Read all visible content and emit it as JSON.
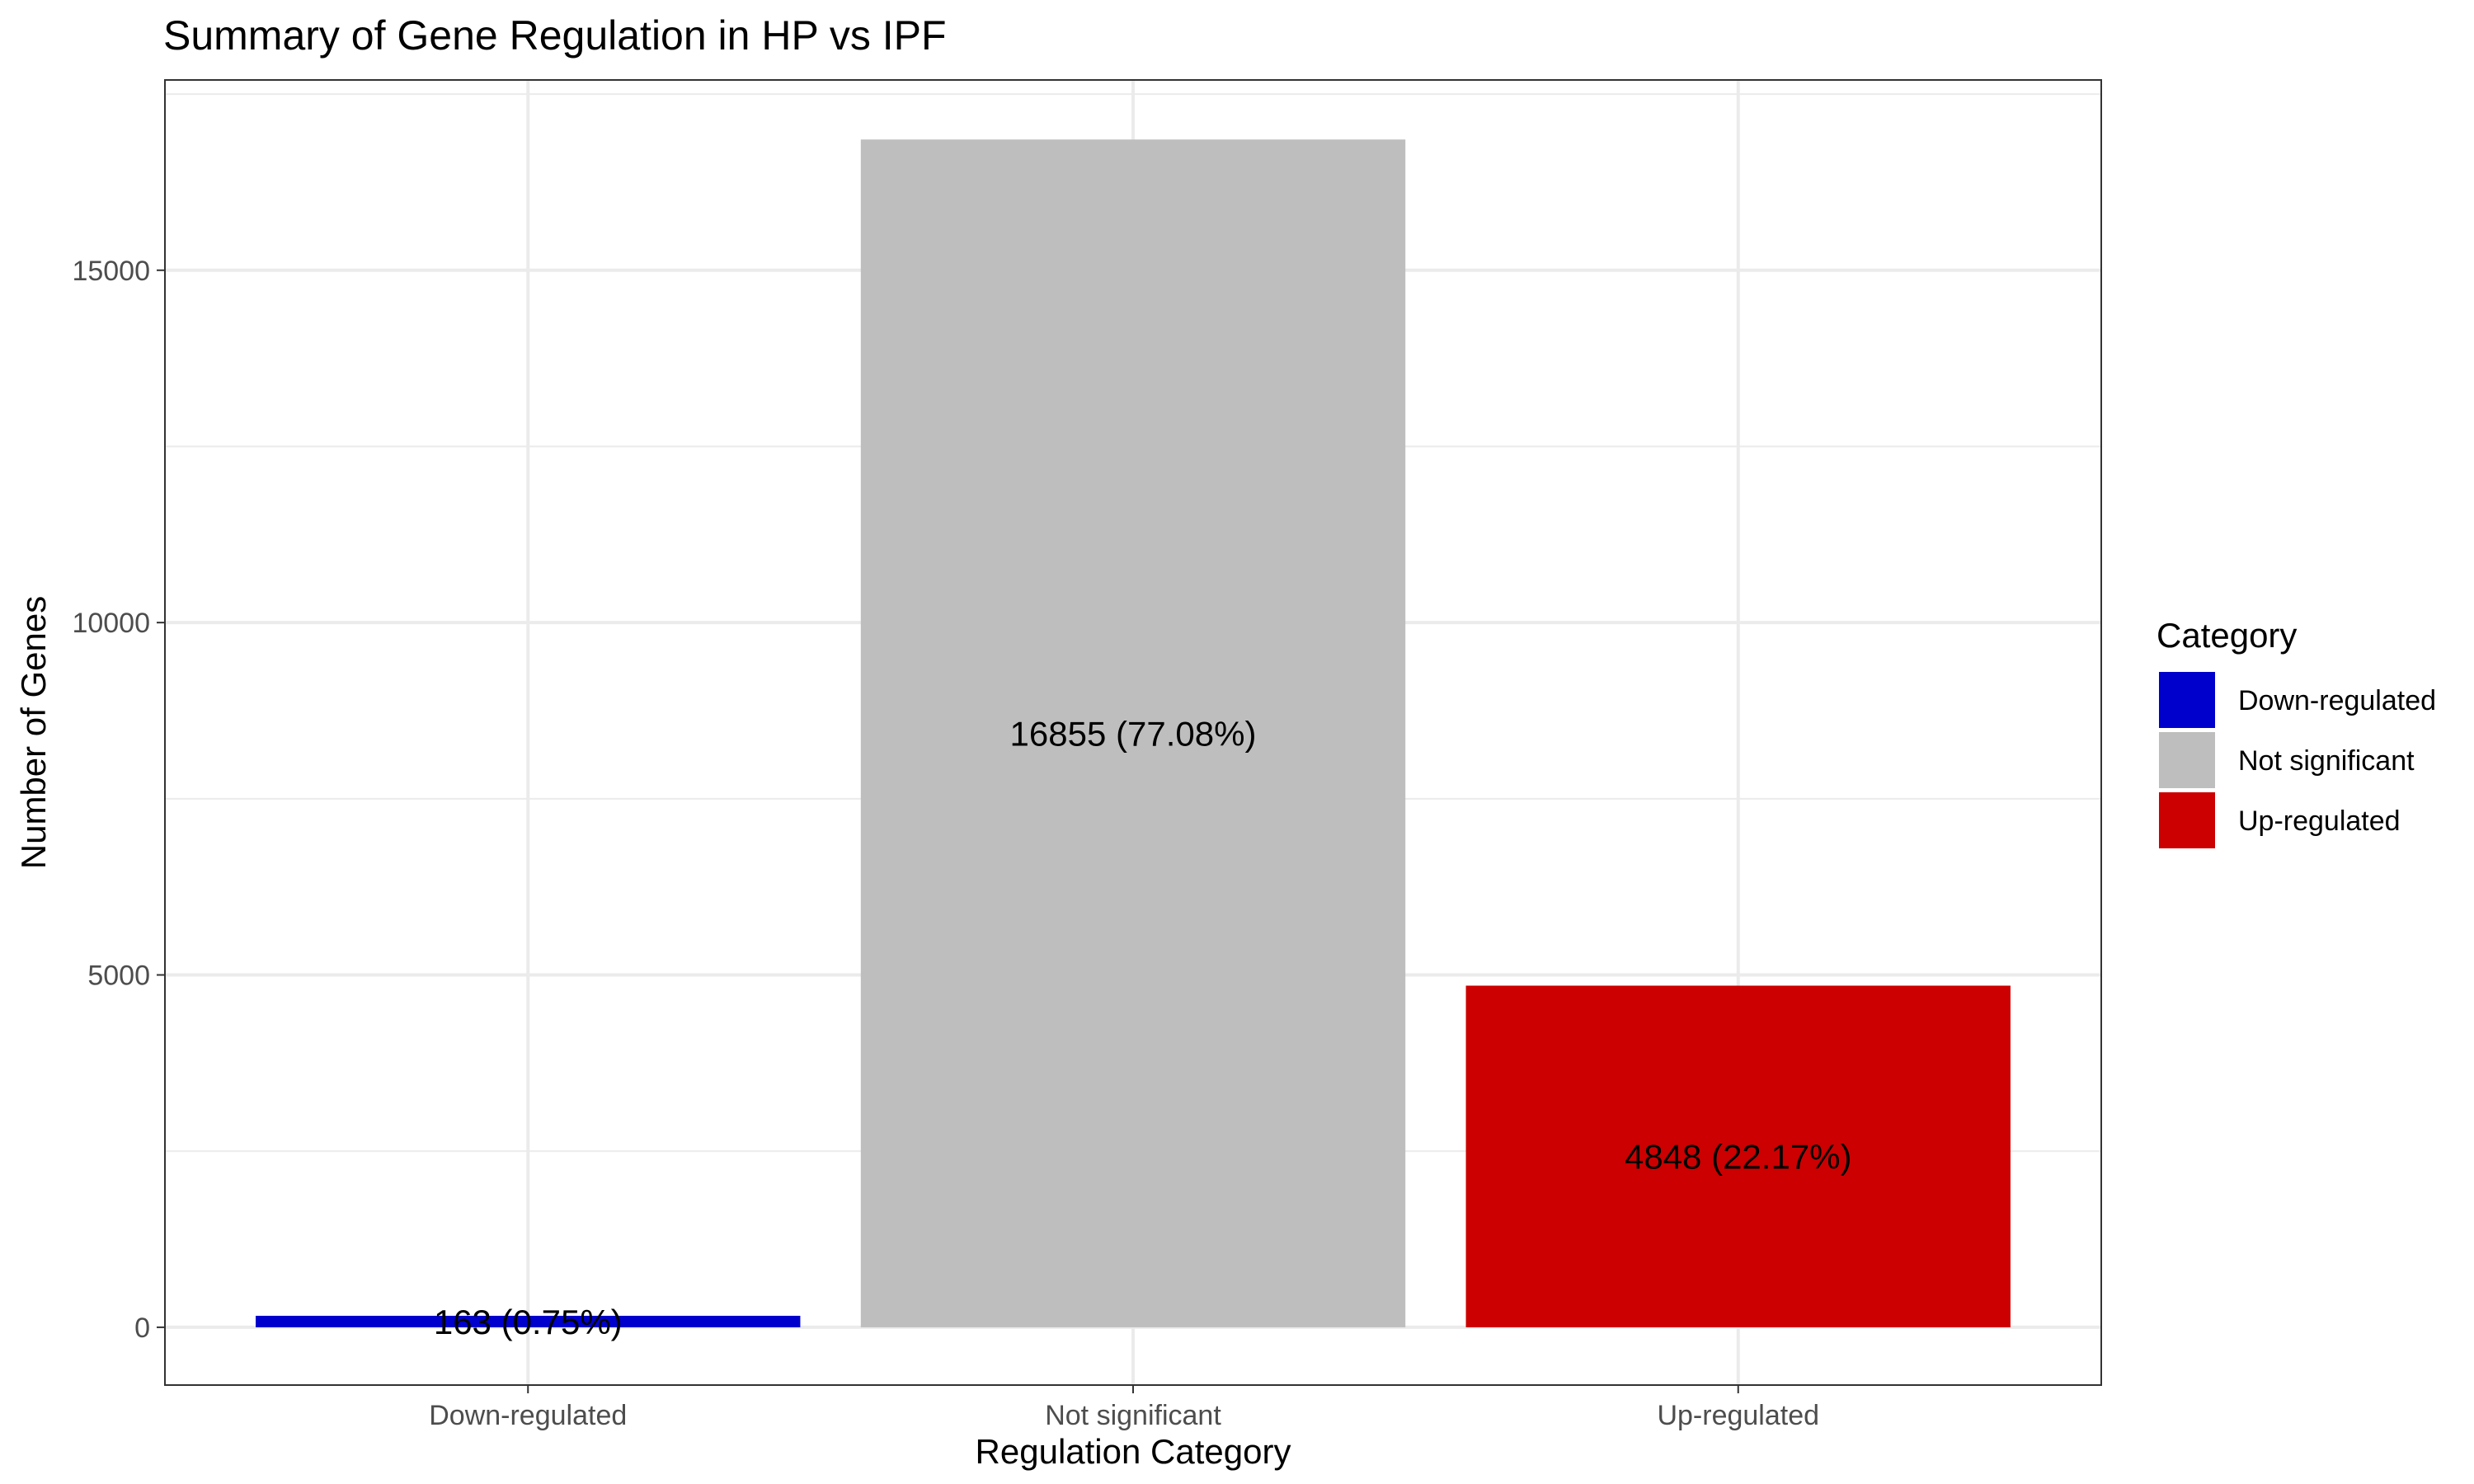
{
  "chart_data": {
    "type": "bar",
    "title": "Summary of Gene Regulation in HP vs IPF",
    "xlabel": "Regulation Category",
    "ylabel": "Number of Genes",
    "categories": [
      "Down-regulated",
      "Not significant",
      "Up-regulated"
    ],
    "values": [
      163,
      16855,
      4848
    ],
    "bar_labels": [
      "163 (0.75%)",
      "16855 (77.08%)",
      "4848 (22.17%)"
    ],
    "colors": [
      "#0000CC",
      "#BEBEBE",
      "#CC0000"
    ],
    "ylim": [
      -820,
      17700
    ],
    "yticks": [
      0,
      5000,
      10000,
      15000
    ],
    "grid": true,
    "legend": {
      "title": "Category",
      "placement": "right",
      "entries": [
        "Down-regulated",
        "Not significant",
        "Up-regulated"
      ]
    }
  }
}
